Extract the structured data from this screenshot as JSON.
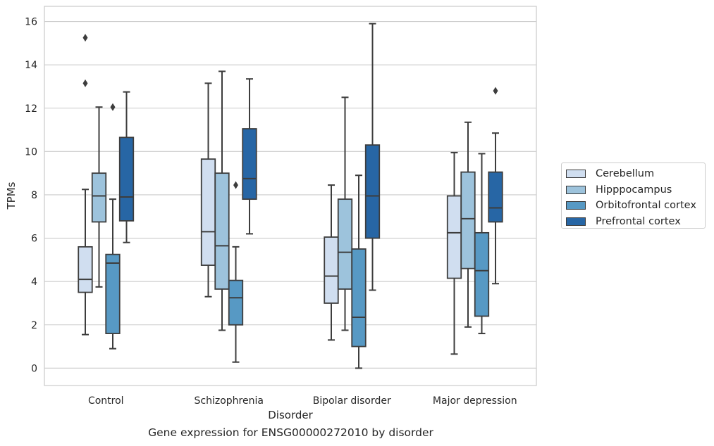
{
  "caption": "Gene expression for ENSG00000272010 by disorder",
  "chart_data": {
    "type": "box",
    "xlabel": "Disorder",
    "ylabel": "TPMs",
    "ylim": [
      -0.8,
      16.7
    ],
    "yticks": [
      0,
      2,
      4,
      6,
      8,
      10,
      12,
      14,
      16
    ],
    "categories": [
      "Control",
      "Schizophrenia",
      "Bipolar disorder",
      "Major depression"
    ],
    "grid": "horizontal",
    "legend_position": "right",
    "series": [
      {
        "name": "Cerebellum",
        "color": "#d0def0",
        "boxes": [
          {
            "whislo": 1.55,
            "q1": 3.5,
            "med": 4.1,
            "q3": 5.6,
            "whishi": 8.25,
            "fliers": [
              13.15,
              15.25
            ]
          },
          {
            "whislo": 3.3,
            "q1": 4.75,
            "med": 6.3,
            "q3": 9.65,
            "whishi": 13.15,
            "fliers": []
          },
          {
            "whislo": 1.3,
            "q1": 3.0,
            "med": 4.25,
            "q3": 6.05,
            "whishi": 8.45,
            "fliers": []
          },
          {
            "whislo": 0.65,
            "q1": 4.15,
            "med": 6.25,
            "q3": 7.95,
            "whishi": 9.95,
            "fliers": []
          }
        ]
      },
      {
        "name": "Hipppocampus",
        "color": "#9dc3dc",
        "boxes": [
          {
            "whislo": 3.75,
            "q1": 6.75,
            "med": 7.95,
            "q3": 9.0,
            "whishi": 12.05,
            "fliers": []
          },
          {
            "whislo": 1.75,
            "q1": 3.65,
            "med": 5.65,
            "q3": 9.0,
            "whishi": 13.7,
            "fliers": []
          },
          {
            "whislo": 1.75,
            "q1": 3.65,
            "med": 5.35,
            "q3": 7.8,
            "whishi": 12.5,
            "fliers": []
          },
          {
            "whislo": 1.9,
            "q1": 4.6,
            "med": 6.9,
            "q3": 9.05,
            "whishi": 11.35,
            "fliers": []
          }
        ]
      },
      {
        "name": "Orbitofrontal cortex",
        "color": "#5799c4",
        "boxes": [
          {
            "whislo": 0.9,
            "q1": 1.6,
            "med": 4.85,
            "q3": 5.25,
            "whishi": 7.8,
            "fliers": [
              12.05
            ]
          },
          {
            "whislo": 0.28,
            "q1": 2.0,
            "med": 3.25,
            "q3": 4.05,
            "whishi": 5.6,
            "fliers": [
              8.45
            ]
          },
          {
            "whislo": 0.0,
            "q1": 1.0,
            "med": 2.35,
            "q3": 5.5,
            "whishi": 8.9,
            "fliers": []
          },
          {
            "whislo": 1.6,
            "q1": 2.4,
            "med": 4.5,
            "q3": 6.25,
            "whishi": 9.9,
            "fliers": []
          }
        ]
      },
      {
        "name": "Prefrontal cortex",
        "color": "#2766a5",
        "boxes": [
          {
            "whislo": 5.8,
            "q1": 6.8,
            "med": 7.9,
            "q3": 10.65,
            "whishi": 12.75,
            "fliers": []
          },
          {
            "whislo": 6.2,
            "q1": 7.8,
            "med": 8.75,
            "q3": 11.05,
            "whishi": 13.35,
            "fliers": []
          },
          {
            "whislo": 3.6,
            "q1": 6.0,
            "med": 7.95,
            "q3": 10.3,
            "whishi": 15.9,
            "fliers": []
          },
          {
            "whislo": 3.9,
            "q1": 6.75,
            "med": 7.4,
            "q3": 9.05,
            "whishi": 10.85,
            "fliers": [
              12.8
            ]
          }
        ]
      }
    ]
  }
}
